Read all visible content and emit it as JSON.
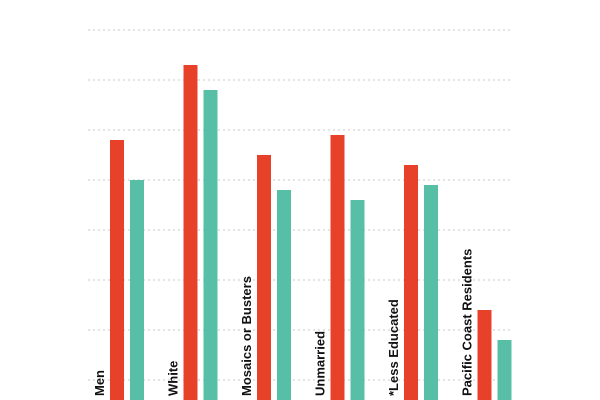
{
  "chart_data": {
    "type": "bar",
    "categories": [
      "Men",
      "White",
      "Mosaics or Busters",
      "Unmarried",
      "*Less Educated",
      "Pacific Coast Residents"
    ],
    "series": [
      {
        "values": [
          53,
          68,
          50,
          54,
          48,
          19
        ]
      },
      {
        "values": [
          45,
          63,
          43,
          41,
          44,
          13
        ]
      }
    ],
    "ylim": [
      0,
      80
    ],
    "grid": true,
    "legend": "none"
  },
  "colors": {
    "series_1": "#e8412a",
    "series_2": "#56bfa6",
    "grid": "#c8c8c8",
    "label": "#111111"
  }
}
